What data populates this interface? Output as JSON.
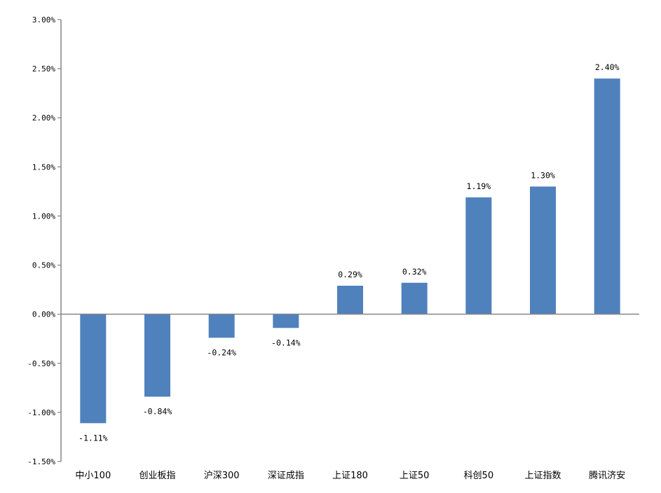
{
  "chart_data": {
    "type": "bar",
    "categories": [
      "中小100",
      "创业板指",
      "沪深300",
      "深证成指",
      "上证180",
      "上证50",
      "科创50",
      "上证指数",
      "腾讯济安"
    ],
    "values": [
      -1.11,
      -0.84,
      -0.24,
      -0.14,
      0.29,
      0.32,
      1.19,
      1.3,
      2.4
    ],
    "value_labels": [
      "-1.11%",
      "-0.84%",
      "-0.24%",
      "-0.14%",
      "0.29%",
      "0.32%",
      "1.19%",
      "1.30%",
      "2.40%"
    ],
    "ylim": [
      -1.5,
      3.0
    ],
    "yticks": [
      3.0,
      2.5,
      2.0,
      1.5,
      1.0,
      0.5,
      0.0,
      -0.5,
      -1.0,
      -1.5
    ],
    "ytick_labels": [
      "3.00%",
      "2.50%",
      "2.00%",
      "1.50%",
      "1.00%",
      "0.50%",
      "0.00%",
      "-0.50%",
      "-1.00%",
      "-1.50%"
    ],
    "grid": false,
    "legend": "none",
    "title": "",
    "xlabel": "",
    "ylabel": "",
    "colors": {
      "bar": "#4f81bd",
      "axis": "#868686"
    }
  }
}
